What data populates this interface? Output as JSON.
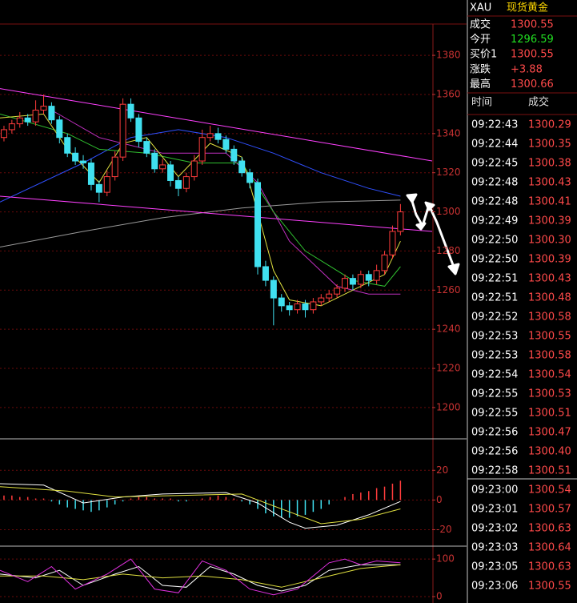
{
  "header": {
    "symbol": "XAU",
    "name": "现货黄金"
  },
  "quote": [
    {
      "label": "成交",
      "value": "1300.55",
      "color": "#ff4a4a"
    },
    {
      "label": "今开",
      "value": "1296.59",
      "color": "#22e022"
    },
    {
      "label": "买价1",
      "value": "1300.55",
      "color": "#ff4a4a"
    },
    {
      "label": "涨跌",
      "value": "+3.88",
      "color": "#ff4a4a"
    },
    {
      "label": "最高",
      "value": "1300.66",
      "color": "#ff4a4a"
    }
  ],
  "trades": {
    "columns": [
      "时间",
      "成交"
    ],
    "rows": [
      [
        "09:22:43",
        "1300.29"
      ],
      [
        "09:22:44",
        "1300.35"
      ],
      [
        "09:22:45",
        "1300.38"
      ],
      [
        "09:22:48",
        "1300.43"
      ],
      [
        "09:22:48",
        "1300.41"
      ],
      [
        "09:22:49",
        "1300.39"
      ],
      [
        "09:22:50",
        "1300.30"
      ],
      [
        "09:22:50",
        "1300.39"
      ],
      [
        "09:22:51",
        "1300.43"
      ],
      [
        "09:22:51",
        "1300.48"
      ],
      [
        "09:22:52",
        "1300.58"
      ],
      [
        "09:22:53",
        "1300.55"
      ],
      [
        "09:22:53",
        "1300.58"
      ],
      [
        "09:22:54",
        "1300.54"
      ],
      [
        "09:22:55",
        "1300.53"
      ],
      [
        "09:22:55",
        "1300.51"
      ],
      [
        "09:22:56",
        "1300.47"
      ],
      [
        "09:22:56",
        "1300.40"
      ],
      [
        "09:22:58",
        "1300.51"
      ],
      [
        "09:23:00",
        "1300.54"
      ],
      [
        "09:23:01",
        "1300.57"
      ],
      [
        "09:23:02",
        "1300.63"
      ],
      [
        "09:23:03",
        "1300.64"
      ],
      [
        "09:23:05",
        "1300.63"
      ],
      [
        "09:23:06",
        "1300.55"
      ]
    ]
  },
  "chart_data": [
    {
      "type": "candlestick",
      "xlim": [
        -0.5,
        54
      ],
      "ylim": [
        1184,
        1396
      ],
      "yticks": [
        1200,
        1220,
        1240,
        1260,
        1280,
        1300,
        1320,
        1340,
        1360,
        1380
      ],
      "grid": true,
      "up_color": "#ff3c3c",
      "down_color": "#40e0f0",
      "candles": [
        [
          1338,
          1344,
          1336,
          1342
        ],
        [
          1342,
          1347,
          1340,
          1345
        ],
        [
          1345,
          1351,
          1343,
          1348
        ],
        [
          1348,
          1350,
          1344,
          1346
        ],
        [
          1346,
          1357,
          1344,
          1352
        ],
        [
          1352,
          1360,
          1350,
          1354
        ],
        [
          1354,
          1356,
          1345,
          1347
        ],
        [
          1347,
          1349,
          1335,
          1338
        ],
        [
          1338,
          1340,
          1328,
          1330
        ],
        [
          1330,
          1333,
          1324,
          1326
        ],
        [
          1326,
          1329,
          1322,
          1325
        ],
        [
          1325,
          1327,
          1311,
          1314
        ],
        [
          1314,
          1316,
          1305,
          1310
        ],
        [
          1310,
          1321,
          1308,
          1318
        ],
        [
          1318,
          1331,
          1316,
          1328
        ],
        [
          1328,
          1358,
          1326,
          1355
        ],
        [
          1355,
          1358,
          1346,
          1348
        ],
        [
          1348,
          1350,
          1333,
          1336
        ],
        [
          1336,
          1338,
          1328,
          1330
        ],
        [
          1330,
          1332,
          1320,
          1322
        ],
        [
          1322,
          1327,
          1320,
          1324
        ],
        [
          1324,
          1326,
          1313,
          1316
        ],
        [
          1316,
          1318,
          1308,
          1312
        ],
        [
          1312,
          1320,
          1310,
          1318
        ],
        [
          1318,
          1329,
          1316,
          1326
        ],
        [
          1326,
          1342,
          1324,
          1338
        ],
        [
          1338,
          1344,
          1336,
          1340
        ],
        [
          1340,
          1343,
          1335,
          1337
        ],
        [
          1337,
          1339,
          1330,
          1332
        ],
        [
          1332,
          1334,
          1324,
          1326
        ],
        [
          1326,
          1328,
          1318,
          1320
        ],
        [
          1320,
          1322,
          1312,
          1315
        ],
        [
          1315,
          1317,
          1268,
          1272
        ],
        [
          1272,
          1275,
          1262,
          1265
        ],
        [
          1265,
          1267,
          1242,
          1256
        ],
        [
          1256,
          1258,
          1249,
          1252
        ],
        [
          1252,
          1254,
          1247,
          1250
        ],
        [
          1250,
          1255,
          1248,
          1253
        ],
        [
          1253,
          1255,
          1246,
          1250
        ],
        [
          1250,
          1256,
          1248,
          1254
        ],
        [
          1254,
          1258,
          1252,
          1256
        ],
        [
          1256,
          1260,
          1254,
          1258
        ],
        [
          1258,
          1263,
          1256,
          1261
        ],
        [
          1261,
          1268,
          1259,
          1266
        ],
        [
          1266,
          1268,
          1260,
          1263
        ],
        [
          1263,
          1270,
          1261,
          1268
        ],
        [
          1268,
          1270,
          1262,
          1265
        ],
        [
          1265,
          1273,
          1263,
          1270
        ],
        [
          1270,
          1280,
          1268,
          1278
        ],
        [
          1278,
          1293,
          1276,
          1290
        ],
        [
          1290,
          1304,
          1288,
          1300
        ]
      ],
      "overlays": [
        {
          "color": "#9a9a9a",
          "x": [
            -0.5,
            10,
            20,
            30,
            40,
            50
          ],
          "values": [
            1282,
            1290,
            1297,
            1302,
            1305,
            1306
          ]
        },
        {
          "color": "#3050ff",
          "x": [
            -0.5,
            10,
            16,
            22,
            28,
            34,
            40,
            46,
            50
          ],
          "values": [
            1305,
            1325,
            1338,
            1342,
            1338,
            1330,
            1320,
            1312,
            1308
          ]
        },
        {
          "color": "#c030c0",
          "x": [
            6,
            12,
            20,
            28,
            32,
            36,
            42,
            46,
            50
          ],
          "values": [
            1352,
            1338,
            1330,
            1330,
            1315,
            1285,
            1262,
            1258,
            1258
          ]
        },
        {
          "color": "#30c030",
          "x": [
            -0.5,
            8,
            12,
            18,
            24,
            30,
            34,
            38,
            44,
            48,
            50
          ],
          "values": [
            1350,
            1340,
            1332,
            1330,
            1325,
            1325,
            1300,
            1280,
            1265,
            1262,
            1272
          ]
        },
        {
          "color": "#e0e040",
          "x": [
            -0.5,
            5,
            8,
            12,
            15,
            18,
            22,
            26,
            30,
            32,
            34,
            36,
            40,
            44,
            48,
            50
          ],
          "values": [
            1348,
            1350,
            1332,
            1315,
            1335,
            1338,
            1318,
            1335,
            1328,
            1300,
            1270,
            1255,
            1252,
            1260,
            1268,
            1285
          ]
        },
        {
          "color": "#ff40ff",
          "x": [
            -0.5,
            54
          ],
          "values": [
            1363,
            1326
          ]
        },
        {
          "color": "#ff40ff",
          "x": [
            -0.5,
            54
          ],
          "values": [
            1308,
            1290
          ]
        }
      ]
    },
    {
      "type": "macd",
      "xlim": [
        -0.5,
        54
      ],
      "ylim": [
        -30,
        32
      ],
      "yticks": [
        -20,
        0,
        20
      ],
      "grid": true,
      "up_color": "#ff3c3c",
      "down_color": "#40e0f0",
      "values": [
        3,
        3,
        2,
        2,
        1,
        1,
        -1,
        -3,
        -5,
        -6,
        -7,
        -8,
        -7,
        -5,
        -3,
        -1,
        1,
        2,
        2,
        1,
        1,
        1,
        -1,
        -1,
        0,
        1,
        2,
        3,
        2,
        1,
        -1,
        -3,
        -6,
        -9,
        -11,
        -12,
        -12,
        -11,
        -10,
        -8,
        -6,
        -3,
        0,
        2,
        4,
        5,
        6,
        8,
        9,
        11,
        13
      ],
      "overlays": [
        {
          "color": "#ffffff",
          "x": [
            -0.5,
            5,
            10,
            15,
            20,
            28,
            32,
            36,
            38,
            42,
            46,
            50
          ],
          "values": [
            11,
            10,
            -2,
            2,
            4,
            5,
            -2,
            -15,
            -19,
            -17,
            -10,
            -1
          ]
        },
        {
          "color": "#e0e040",
          "x": [
            -0.5,
            8,
            14,
            22,
            30,
            36,
            40,
            45,
            50
          ],
          "values": [
            9,
            6,
            2,
            3,
            4,
            -8,
            -16,
            -13,
            -6
          ]
        }
      ]
    },
    {
      "type": "kdj",
      "xlim": [
        -0.5,
        54
      ],
      "ylim": [
        -17,
        128
      ],
      "yticks": [
        0,
        100
      ],
      "grid": true,
      "overlays": [
        {
          "color": "#ffffff",
          "x": [
            -0.5,
            4,
            7,
            10,
            14,
            17,
            20,
            23,
            26,
            29,
            32,
            35,
            38,
            41,
            45,
            50
          ],
          "values": [
            60,
            50,
            70,
            30,
            60,
            80,
            30,
            25,
            80,
            60,
            30,
            15,
            30,
            70,
            85,
            85
          ]
        },
        {
          "color": "#e0e040",
          "x": [
            -0.5,
            5,
            10,
            15,
            20,
            25,
            30,
            35,
            40,
            45,
            50
          ],
          "values": [
            55,
            55,
            45,
            60,
            50,
            55,
            45,
            25,
            50,
            75,
            85
          ]
        },
        {
          "color": "#e030e0",
          "x": [
            -0.5,
            3,
            6,
            9,
            13,
            16,
            19,
            22,
            25,
            28,
            31,
            34,
            37,
            41,
            43,
            45,
            47,
            50
          ],
          "values": [
            70,
            40,
            80,
            20,
            60,
            100,
            20,
            10,
            95,
            70,
            20,
            5,
            20,
            90,
            100,
            85,
            95,
            90
          ]
        }
      ]
    }
  ]
}
